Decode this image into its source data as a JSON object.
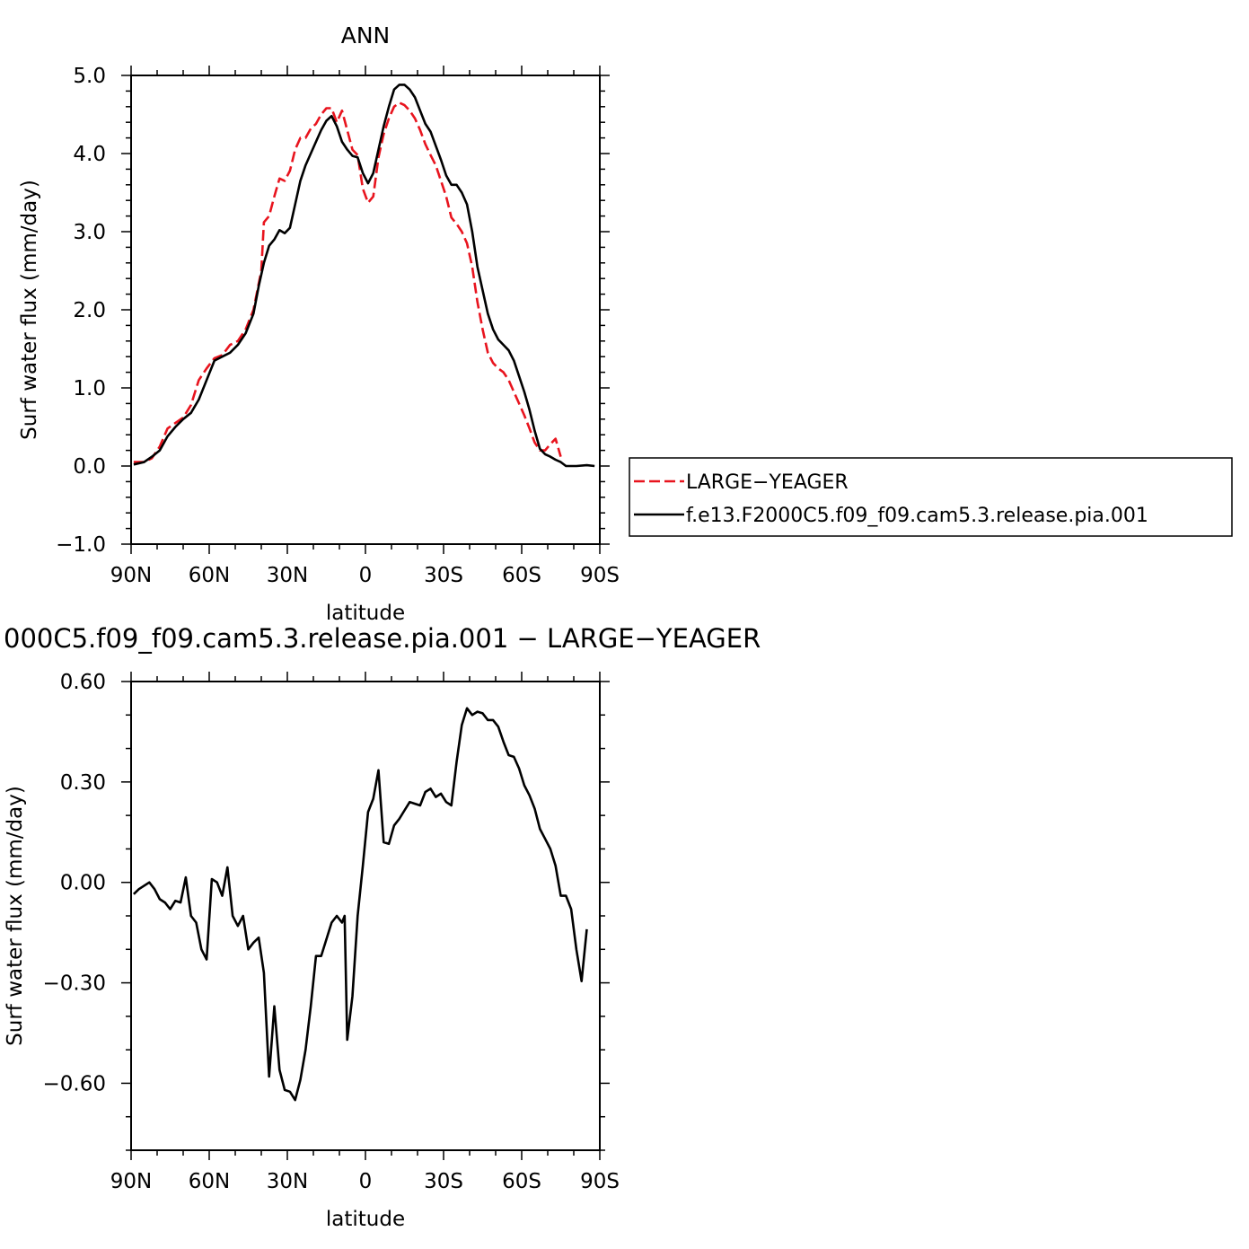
{
  "chart_data": [
    {
      "type": "line",
      "title": "ANN",
      "xlabel": "latitude",
      "ylabel": "Surf water flux (mm/day)",
      "xlim": [
        -90,
        90
      ],
      "ylim": [
        -1.0,
        5.0
      ],
      "x_ticks": [
        {
          "value": -90,
          "label": "90N"
        },
        {
          "value": -60,
          "label": "60N"
        },
        {
          "value": -30,
          "label": "30N"
        },
        {
          "value": 0,
          "label": "0"
        },
        {
          "value": 30,
          "label": "30S"
        },
        {
          "value": 60,
          "label": "60S"
        },
        {
          "value": 90,
          "label": "90S"
        }
      ],
      "y_ticks": [
        {
          "value": -1.0,
          "label": "−1.0"
        },
        {
          "value": 0.0,
          "label": "0.0"
        },
        {
          "value": 1.0,
          "label": "1.0"
        },
        {
          "value": 2.0,
          "label": "2.0"
        },
        {
          "value": 3.0,
          "label": "3.0"
        },
        {
          "value": 4.0,
          "label": "4.0"
        },
        {
          "value": 5.0,
          "label": "5.0"
        }
      ],
      "legend_position": "right",
      "series": [
        {
          "name": "LARGE−YEAGER",
          "color": "#e8141e",
          "dash": true,
          "points": [
            [
              -89,
              0.05
            ],
            [
              -85,
              0.05
            ],
            [
              -82,
              0.1
            ],
            [
              -79,
              0.25
            ],
            [
              -76,
              0.48
            ],
            [
              -73,
              0.55
            ],
            [
              -70,
              0.62
            ],
            [
              -67,
              0.78
            ],
            [
              -64,
              1.1
            ],
            [
              -61,
              1.25
            ],
            [
              -58,
              1.38
            ],
            [
              -55,
              1.42
            ],
            [
              -52,
              1.55
            ],
            [
              -49,
              1.6
            ],
            [
              -46,
              1.75
            ],
            [
              -43,
              2.0
            ],
            [
              -40,
              2.5
            ],
            [
              -39,
              3.12
            ],
            [
              -37,
              3.2
            ],
            [
              -35,
              3.45
            ],
            [
              -33,
              3.68
            ],
            [
              -31,
              3.65
            ],
            [
              -29,
              3.78
            ],
            [
              -27,
              4.05
            ],
            [
              -25,
              4.2
            ],
            [
              -23,
              4.2
            ],
            [
              -21,
              4.32
            ],
            [
              -19,
              4.38
            ],
            [
              -17,
              4.5
            ],
            [
              -15,
              4.58
            ],
            [
              -13,
              4.58
            ],
            [
              -11,
              4.4
            ],
            [
              -9,
              4.55
            ],
            [
              -7,
              4.3
            ],
            [
              -5,
              4.05
            ],
            [
              -3,
              3.98
            ],
            [
              -1,
              3.55
            ],
            [
              1,
              3.37
            ],
            [
              3,
              3.45
            ],
            [
              5,
              3.95
            ],
            [
              7,
              4.25
            ],
            [
              9,
              4.45
            ],
            [
              11,
              4.6
            ],
            [
              13,
              4.65
            ],
            [
              15,
              4.62
            ],
            [
              17,
              4.55
            ],
            [
              19,
              4.45
            ],
            [
              21,
              4.3
            ],
            [
              23,
              4.12
            ],
            [
              25,
              3.98
            ],
            [
              27,
              3.85
            ],
            [
              29,
              3.65
            ],
            [
              31,
              3.45
            ],
            [
              33,
              3.18
            ],
            [
              35,
              3.1
            ],
            [
              37,
              3.0
            ],
            [
              39,
              2.85
            ],
            [
              41,
              2.55
            ],
            [
              43,
              2.1
            ],
            [
              45,
              1.75
            ],
            [
              47,
              1.45
            ],
            [
              49,
              1.32
            ],
            [
              51,
              1.25
            ],
            [
              53,
              1.2
            ],
            [
              55,
              1.1
            ],
            [
              57,
              0.95
            ],
            [
              59,
              0.8
            ],
            [
              61,
              0.65
            ],
            [
              63,
              0.48
            ],
            [
              65,
              0.3
            ],
            [
              67,
              0.2
            ],
            [
              69,
              0.2
            ],
            [
              71,
              0.28
            ],
            [
              73,
              0.35
            ],
            [
              75,
              0.12
            ]
          ]
        },
        {
          "name": "f.e13.F2000C5.f09_f09.cam5.3.release.pia.001",
          "color": "#000000",
          "dash": false,
          "points": [
            [
              -89,
              0.02
            ],
            [
              -85,
              0.05
            ],
            [
              -82,
              0.12
            ],
            [
              -79,
              0.2
            ],
            [
              -76,
              0.38
            ],
            [
              -73,
              0.5
            ],
            [
              -70,
              0.6
            ],
            [
              -67,
              0.68
            ],
            [
              -64,
              0.85
            ],
            [
              -61,
              1.1
            ],
            [
              -58,
              1.35
            ],
            [
              -55,
              1.4
            ],
            [
              -52,
              1.45
            ],
            [
              -49,
              1.55
            ],
            [
              -46,
              1.7
            ],
            [
              -43,
              1.95
            ],
            [
              -41,
              2.3
            ],
            [
              -39,
              2.6
            ],
            [
              -37,
              2.82
            ],
            [
              -35,
              2.9
            ],
            [
              -33,
              3.02
            ],
            [
              -31,
              2.98
            ],
            [
              -29,
              3.05
            ],
            [
              -27,
              3.35
            ],
            [
              -25,
              3.65
            ],
            [
              -23,
              3.85
            ],
            [
              -21,
              4.0
            ],
            [
              -19,
              4.15
            ],
            [
              -17,
              4.3
            ],
            [
              -15,
              4.42
            ],
            [
              -13,
              4.48
            ],
            [
              -11,
              4.35
            ],
            [
              -9,
              4.15
            ],
            [
              -7,
              4.05
            ],
            [
              -5,
              3.97
            ],
            [
              -3,
              3.95
            ],
            [
              -1,
              3.75
            ],
            [
              1,
              3.62
            ],
            [
              3,
              3.75
            ],
            [
              5,
              4.05
            ],
            [
              7,
              4.35
            ],
            [
              9,
              4.6
            ],
            [
              11,
              4.82
            ],
            [
              13,
              4.88
            ],
            [
              15,
              4.88
            ],
            [
              17,
              4.82
            ],
            [
              19,
              4.72
            ],
            [
              21,
              4.55
            ],
            [
              23,
              4.38
            ],
            [
              25,
              4.28
            ],
            [
              27,
              4.1
            ],
            [
              29,
              3.92
            ],
            [
              31,
              3.72
            ],
            [
              33,
              3.6
            ],
            [
              35,
              3.6
            ],
            [
              37,
              3.5
            ],
            [
              39,
              3.35
            ],
            [
              41,
              3.0
            ],
            [
              43,
              2.55
            ],
            [
              45,
              2.25
            ],
            [
              47,
              1.95
            ],
            [
              49,
              1.75
            ],
            [
              51,
              1.62
            ],
            [
              53,
              1.55
            ],
            [
              55,
              1.48
            ],
            [
              57,
              1.35
            ],
            [
              59,
              1.15
            ],
            [
              61,
              0.95
            ],
            [
              63,
              0.72
            ],
            [
              65,
              0.45
            ],
            [
              67,
              0.22
            ],
            [
              69,
              0.15
            ],
            [
              71,
              0.12
            ],
            [
              73,
              0.08
            ],
            [
              75,
              0.05
            ],
            [
              77,
              0.0
            ],
            [
              81,
              0.0
            ],
            [
              85,
              0.01
            ],
            [
              88,
              0.0
            ]
          ]
        }
      ]
    },
    {
      "type": "line",
      "title": "000C5.f09_f09.cam5.3.release.pia.001 − LARGE−YEAGER",
      "xlabel": "latitude",
      "ylabel": "Surf water flux (mm/day)",
      "xlim": [
        -90,
        90
      ],
      "ylim": [
        -0.8,
        0.6
      ],
      "x_ticks": [
        {
          "value": -90,
          "label": "90N"
        },
        {
          "value": -60,
          "label": "60N"
        },
        {
          "value": -30,
          "label": "30N"
        },
        {
          "value": 0,
          "label": "0"
        },
        {
          "value": 30,
          "label": "30S"
        },
        {
          "value": 60,
          "label": "60S"
        },
        {
          "value": 90,
          "label": "90S"
        }
      ],
      "y_ticks": [
        {
          "value": -0.6,
          "label": "−0.60"
        },
        {
          "value": -0.3,
          "label": "−0.30"
        },
        {
          "value": 0.0,
          "label": "0.00"
        },
        {
          "value": 0.3,
          "label": "0.30"
        },
        {
          "value": 0.6,
          "label": "0.60"
        }
      ],
      "series": [
        {
          "color": "#000000",
          "dash": false,
          "points": [
            [
              -89,
              -0.035
            ],
            [
              -87,
              -0.02
            ],
            [
              -85,
              -0.01
            ],
            [
              -83,
              0.0
            ],
            [
              -81,
              -0.02
            ],
            [
              -79,
              -0.05
            ],
            [
              -77,
              -0.06
            ],
            [
              -75,
              -0.08
            ],
            [
              -73,
              -0.055
            ],
            [
              -71,
              -0.06
            ],
            [
              -69,
              0.015
            ],
            [
              -67,
              -0.1
            ],
            [
              -65,
              -0.12
            ],
            [
              -63,
              -0.2
            ],
            [
              -61,
              -0.23
            ],
            [
              -59,
              0.01
            ],
            [
              -57,
              0.0
            ],
            [
              -55,
              -0.04
            ],
            [
              -53,
              0.045
            ],
            [
              -51,
              -0.1
            ],
            [
              -49,
              -0.13
            ],
            [
              -47,
              -0.1
            ],
            [
              -45,
              -0.2
            ],
            [
              -43,
              -0.18
            ],
            [
              -41,
              -0.165
            ],
            [
              -39,
              -0.27
            ],
            [
              -37,
              -0.58
            ],
            [
              -35,
              -0.37
            ],
            [
              -33,
              -0.56
            ],
            [
              -31,
              -0.62
            ],
            [
              -29,
              -0.625
            ],
            [
              -27,
              -0.65
            ],
            [
              -25,
              -0.59
            ],
            [
              -23,
              -0.5
            ],
            [
              -21,
              -0.37
            ],
            [
              -19,
              -0.22
            ],
            [
              -17,
              -0.22
            ],
            [
              -15,
              -0.17
            ],
            [
              -13,
              -0.12
            ],
            [
              -11,
              -0.1
            ],
            [
              -9,
              -0.12
            ],
            [
              -8,
              -0.1
            ],
            [
              -7,
              -0.47
            ],
            [
              -5,
              -0.34
            ],
            [
              -3,
              -0.1
            ],
            [
              -1,
              0.05
            ],
            [
              1,
              0.21
            ],
            [
              3,
              0.25
            ],
            [
              5,
              0.335
            ],
            [
              7,
              0.12
            ],
            [
              9,
              0.115
            ],
            [
              11,
              0.17
            ],
            [
              13,
              0.19
            ],
            [
              15,
              0.215
            ],
            [
              17,
              0.24
            ],
            [
              19,
              0.235
            ],
            [
              21,
              0.23
            ],
            [
              23,
              0.27
            ],
            [
              25,
              0.28
            ],
            [
              27,
              0.255
            ],
            [
              29,
              0.265
            ],
            [
              31,
              0.24
            ],
            [
              33,
              0.23
            ],
            [
              35,
              0.36
            ],
            [
              37,
              0.47
            ],
            [
              39,
              0.52
            ],
            [
              41,
              0.5
            ],
            [
              43,
              0.51
            ],
            [
              45,
              0.505
            ],
            [
              47,
              0.485
            ],
            [
              49,
              0.485
            ],
            [
              51,
              0.465
            ],
            [
              53,
              0.42
            ],
            [
              55,
              0.38
            ],
            [
              57,
              0.375
            ],
            [
              59,
              0.34
            ],
            [
              61,
              0.29
            ],
            [
              63,
              0.26
            ],
            [
              65,
              0.22
            ],
            [
              67,
              0.16
            ],
            [
              69,
              0.13
            ],
            [
              71,
              0.1
            ],
            [
              73,
              0.05
            ],
            [
              75,
              -0.04
            ],
            [
              77,
              -0.04
            ],
            [
              79,
              -0.08
            ],
            [
              81,
              -0.2
            ],
            [
              83,
              -0.295
            ],
            [
              85,
              -0.14
            ]
          ]
        }
      ]
    }
  ]
}
